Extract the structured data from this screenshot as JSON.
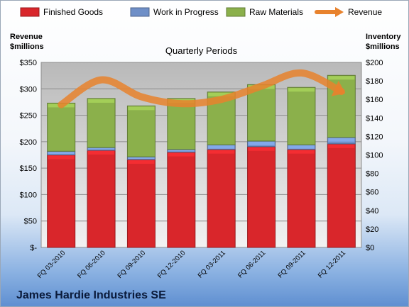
{
  "chart_data": {
    "type": "bar",
    "stacked": true,
    "title": "Quarterly Periods",
    "company": "James Hardie Industries SE",
    "categories": [
      "FQ 03-2010",
      "FQ 06-2010",
      "FQ 09-2010",
      "FQ 12-2010",
      "FQ 03-2011",
      "FQ 06-2011",
      "FQ 09-2011",
      "FQ 12-2011"
    ],
    "series": [
      {
        "name": "Finished Goods",
        "axis": "right",
        "color": "#d9262b",
        "values": [
          100,
          105,
          95,
          103,
          106,
          109,
          106,
          112
        ]
      },
      {
        "name": "Work in Progress",
        "axis": "right",
        "color": "#6f8fc7",
        "values": [
          4,
          3,
          3,
          3,
          5,
          6,
          5,
          7
        ]
      },
      {
        "name": "Raw Materials",
        "axis": "right",
        "color": "#8bb04b",
        "values": [
          52,
          53,
          55,
          55,
          57,
          61,
          62,
          67
        ]
      },
      {
        "name": "Revenue",
        "type": "line",
        "axis": "left",
        "color": "#e8822d",
        "values": [
          270,
          317,
          285,
          272,
          280,
          305,
          330,
          295
        ]
      }
    ],
    "left_axis": {
      "label": "Revenue\n$millions",
      "label_line1": "Revenue",
      "label_line2": "$millions",
      "min": 0,
      "max": 350,
      "step": 50,
      "ticks": [
        "$-",
        "$50",
        "$100",
        "$150",
        "$200",
        "$250",
        "$300",
        "$350"
      ]
    },
    "right_axis": {
      "label": "Inventory\n$millions",
      "label_line1": "Inventory",
      "label_line2": "$millions",
      "min": 0,
      "max": 200,
      "step": 20,
      "ticks": [
        "$0",
        "$20",
        "$40",
        "$60",
        "$80",
        "$100",
        "$120",
        "$140",
        "$160",
        "$180",
        "$200"
      ]
    },
    "legend_position": "top",
    "grid": true
  }
}
